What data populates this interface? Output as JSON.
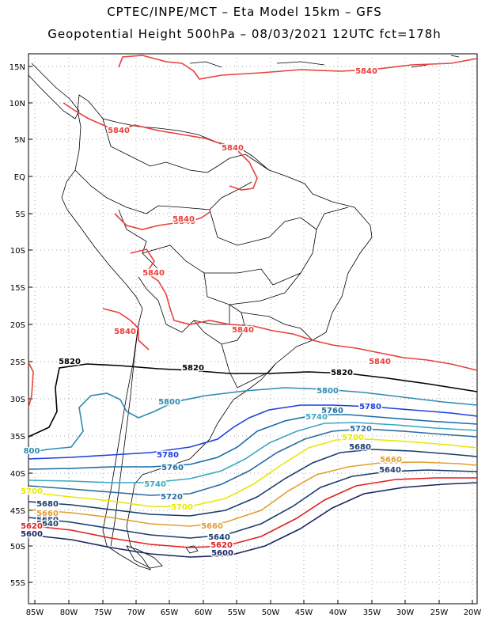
{
  "title_line1": "CPTEC/INPE/MCT –  Eta Model 15km – GFS",
  "title_line2": "Geopotential Height 500hPa – 08/03/2021 12UTC fct=178h",
  "lat_labels": [
    "15N",
    "10N",
    "5N",
    "EQ",
    "5S",
    "10S",
    "15S",
    "20S",
    "25S",
    "30S",
    "35S",
    "40S",
    "45S",
    "50S",
    "55S"
  ],
  "lon_labels": [
    "85W",
    "80W",
    "75W",
    "70W",
    "65W",
    "60W",
    "55W",
    "50W",
    "45W",
    "40W",
    "35W",
    "30W",
    "25W",
    "20W"
  ],
  "colors": {
    "c5840": "#e8413c",
    "c5820": "#000000",
    "c5800": "#2e8bb0",
    "c5780": "#1f3fe0",
    "c5760": "#1a6ca8",
    "c5740": "#3aa8c0",
    "c5720": "#2a6aa0",
    "c5700": "#e8e800",
    "c5680": "#1a3d6e",
    "c5660": "#e0a030",
    "c5620": "#e02020",
    "c5600": "#1a2560",
    "border": "#000000",
    "grid": "#888888"
  },
  "contour_labels": [
    {
      "text": "5840",
      "color": "c5840"
    },
    {
      "text": "5840",
      "color": "c5840"
    },
    {
      "text": "5840",
      "color": "c5840"
    },
    {
      "text": "5840",
      "color": "c5840"
    },
    {
      "text": "5840",
      "color": "c5840"
    },
    {
      "text": "5840",
      "color": "c5840"
    },
    {
      "text": "5840",
      "color": "c5840"
    },
    {
      "text": "5840",
      "color": "c5840"
    },
    {
      "text": "5840",
      "color": "c5840"
    },
    {
      "text": "5820",
      "color": "c5820"
    },
    {
      "text": "5820",
      "color": "c5820"
    },
    {
      "text": "5820",
      "color": "c5820"
    },
    {
      "text": "5800",
      "color": "c5800"
    },
    {
      "text": "5800",
      "color": "c5800"
    },
    {
      "text": "800",
      "color": "c5800"
    },
    {
      "text": "5780",
      "color": "c5780"
    },
    {
      "text": "5780",
      "color": "c5780"
    },
    {
      "text": "5760",
      "color": "c5760"
    },
    {
      "text": "5760",
      "color": "c5760"
    },
    {
      "text": "5740",
      "color": "c5740"
    },
    {
      "text": "5740",
      "color": "c5740"
    },
    {
      "text": "5720",
      "color": "c5720"
    },
    {
      "text": "5720",
      "color": "c5720"
    },
    {
      "text": "5700",
      "color": "c5700"
    },
    {
      "text": "5700",
      "color": "c5700"
    },
    {
      "text": "5700",
      "color": "c5700"
    },
    {
      "text": "5680",
      "color": "c5680"
    },
    {
      "text": "5680",
      "color": "c5680"
    },
    {
      "text": "5680",
      "color": "c5680"
    },
    {
      "text": "5660",
      "color": "c5660"
    },
    {
      "text": "5660",
      "color": "c5660"
    },
    {
      "text": "5660",
      "color": "c5660"
    },
    {
      "text": "5640",
      "color": "c5680"
    },
    {
      "text": "5640",
      "color": "c5680"
    },
    {
      "text": "5640",
      "color": "c5680"
    },
    {
      "text": "5620",
      "color": "c5620"
    },
    {
      "text": "5620",
      "color": "c5620"
    },
    {
      "text": "5600",
      "color": "c5600"
    },
    {
      "text": "5600",
      "color": "c5600"
    }
  ]
}
